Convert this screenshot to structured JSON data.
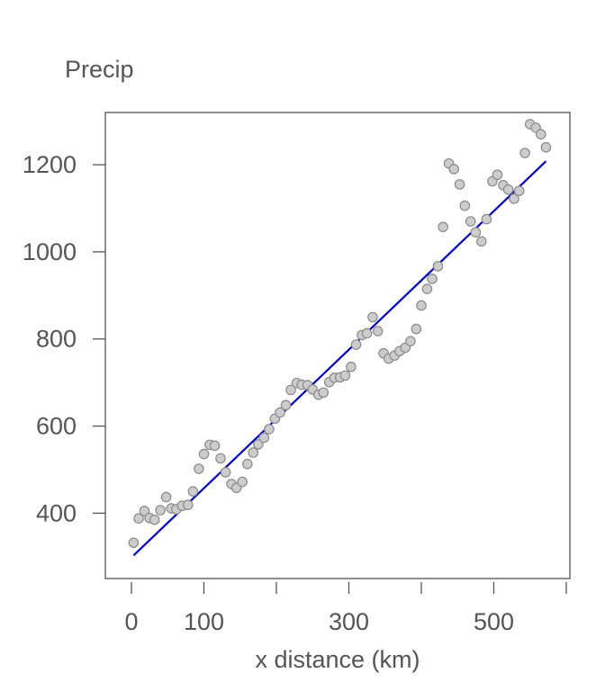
{
  "chart_data": {
    "type": "scatter",
    "title": "",
    "ylabel": "Precip",
    "xlabel": "x distance (km)",
    "xlim": [
      -36,
      605
    ],
    "ylim": [
      250,
      1320
    ],
    "x_major_ticks": [
      0,
      100,
      300,
      500
    ],
    "x_minor_ticks": [
      200,
      400,
      600
    ],
    "y_ticks": [
      400,
      600,
      800,
      1000,
      1200
    ],
    "grid": false,
    "colors": {
      "points_fill": "#cccccc",
      "points_stroke": "#8a8a8a",
      "fit_line": "#0000cc",
      "axis": "#555555"
    },
    "series": [
      {
        "x": [
          3,
          10,
          18,
          25,
          32,
          40,
          48,
          55,
          62,
          70,
          78,
          85,
          93,
          100,
          108,
          115,
          123,
          130,
          138,
          145,
          153,
          160,
          168,
          175,
          183,
          190,
          198,
          205,
          213,
          220,
          228,
          235,
          243,
          250,
          258,
          265,
          273,
          280,
          288,
          295,
          303,
          310,
          318,
          325,
          333,
          340,
          348,
          355,
          363,
          370,
          378,
          385,
          393,
          400,
          408,
          415,
          423,
          430,
          438,
          445,
          453,
          460,
          468,
          475,
          483,
          490,
          498,
          505,
          513,
          520,
          528,
          535,
          543,
          550,
          558,
          565,
          572
        ],
        "y": [
          332,
          388,
          405,
          389,
          385,
          407,
          437,
          411,
          409,
          417,
          419,
          450,
          502,
          536,
          557,
          555,
          526,
          494,
          467,
          458,
          472,
          513,
          539,
          558,
          573,
          593,
          617,
          631,
          648,
          683,
          699,
          695,
          694,
          684,
          672,
          677,
          701,
          711,
          712,
          716,
          736,
          787,
          809,
          813,
          850,
          818,
          767,
          755,
          762,
          772,
          780,
          795,
          823,
          877,
          915,
          938,
          967,
          1057,
          1203,
          1190,
          1155,
          1106,
          1070,
          1045,
          1024,
          1075,
          1162,
          1177,
          1153,
          1143,
          1122,
          1140,
          1227,
          1293,
          1285,
          1270,
          1240
        ]
      }
    ],
    "fit": {
      "x": [
        3,
        572
      ],
      "y": [
        303,
        1208
      ]
    }
  }
}
